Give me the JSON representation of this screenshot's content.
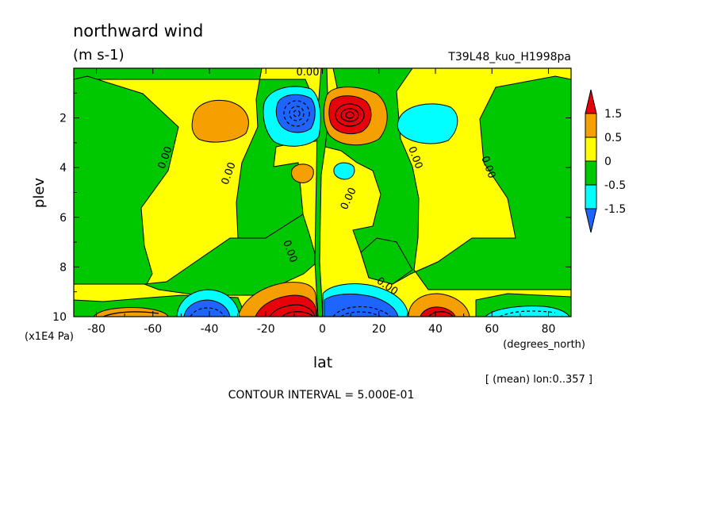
{
  "chart_data": {
    "type": "heatmap",
    "title": "northward wind",
    "subtitle": "(m s-1)",
    "experiment": "T39L48_kuo_H1998pa",
    "xlabel": "lat",
    "xunits": "(degrees_north)",
    "ylabel": "plev",
    "yunits": "(x1E4 Pa)",
    "xlim": [
      -88,
      88
    ],
    "ylim": [
      10,
      0
    ],
    "xticks": [
      -80,
      -60,
      -40,
      -20,
      0,
      20,
      40,
      60,
      80
    ],
    "xtick_labels": [
      "-80",
      "-60",
      "-40",
      "-20",
      "0",
      "20",
      "40",
      "60",
      "80"
    ],
    "yticks": [
      2,
      4,
      6,
      8,
      10
    ],
    "ytick_labels": [
      "2",
      "4",
      "6",
      "8",
      "10"
    ],
    "contour_interval": "CONTOUR INTERVAL = 5.000E-01",
    "averaging_note": "[ (mean) lon:0..357 ]",
    "zero_labels": [
      "0.00",
      "0.00",
      "0.00",
      "0.00",
      "0.00",
      "0.00",
      "0.00",
      "0.00",
      "0.00"
    ],
    "colorbar": {
      "levels": [
        -1.5,
        -0.5,
        0,
        0.5,
        1.5
      ],
      "labels": [
        "1.5",
        "0.5",
        "0",
        "-0.5",
        "-1.5"
      ],
      "colors": [
        "#e8000b",
        "#f5a000",
        "#ffff00",
        "#00c800",
        "#00ffff",
        "#1e64ff"
      ]
    },
    "features": [
      {
        "lat": -10,
        "plev": 1.9,
        "value": -1.8
      },
      {
        "lat": 8,
        "plev": 1.9,
        "value": 2.0
      },
      {
        "lat": -45,
        "plev": 2.2,
        "value": 0.8
      },
      {
        "lat": 38,
        "plev": 2.2,
        "value": -0.7
      },
      {
        "lat": -7,
        "plev": 4.2,
        "value": 0.6
      },
      {
        "lat": 8,
        "plev": 4.2,
        "value": -0.6
      },
      {
        "lat": -12,
        "plev": 9.7,
        "value": 2.0
      },
      {
        "lat": 12,
        "plev": 9.7,
        "value": -2.0
      },
      {
        "lat": -42,
        "plev": 9.7,
        "value": -1.0
      },
      {
        "lat": 40,
        "plev": 9.6,
        "value": 0.9
      },
      {
        "lat": -70,
        "plev": 9.8,
        "value": 0.6
      },
      {
        "lat": 70,
        "plev": 9.8,
        "value": -0.6
      }
    ]
  }
}
